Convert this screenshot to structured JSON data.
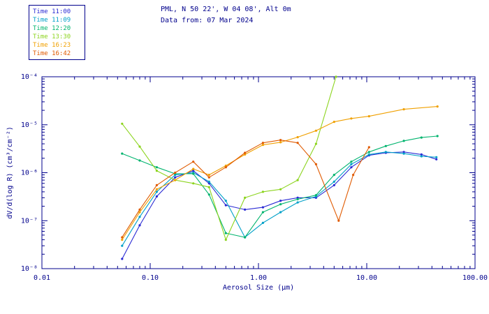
{
  "colors": {
    "axis": "#00008c",
    "background": "#ffffff"
  },
  "legend": {
    "entries": [
      {
        "label": "Time 11:00",
        "color": "#2a2ad4"
      },
      {
        "label": "Time 11:09",
        "color": "#00a0c8"
      },
      {
        "label": "Time 12:20",
        "color": "#00b46e"
      },
      {
        "label": "Time 13:30",
        "color": "#8cd41e"
      },
      {
        "label": "Time 16:23",
        "color": "#f0a000"
      },
      {
        "label": "Time 16:42",
        "color": "#e05a00"
      }
    ]
  },
  "chart_data": {
    "type": "line",
    "title": "PML, N 50 22', W 04 08', Alt 0m",
    "subtitle": "Data from: 07 Mar 2024",
    "xlabel": "Aerosol Size (μm)",
    "ylabel": "dV/d(log R) (cm³/cm⁻²)",
    "axes": {
      "xscale": "log",
      "yscale": "log",
      "xlim": [
        0.01,
        100
      ],
      "ylim": [
        1e-08,
        0.0001
      ],
      "xticks": [
        {
          "value": 0.01,
          "label": "0.01"
        },
        {
          "value": 0.1,
          "label": "0.10"
        },
        {
          "value": 1,
          "label": "1.00"
        },
        {
          "value": 10,
          "label": "10.00"
        },
        {
          "value": 100,
          "label": "100.00"
        }
      ],
      "yticks": [
        {
          "value": 1e-08,
          "label": "10⁻⁸"
        },
        {
          "value": 1e-07,
          "label": "10⁻⁷"
        },
        {
          "value": 1e-06,
          "label": "10⁻⁶"
        },
        {
          "value": 1e-05,
          "label": "10⁻⁵"
        },
        {
          "value": 0.0001,
          "label": "10⁻⁴"
        }
      ],
      "grid": false,
      "legend_position": "top-left"
    },
    "series": [
      {
        "name": "Time 11:00",
        "color": "#2a2ad4",
        "x": [
          0.055,
          0.08,
          0.115,
          0.17,
          0.25,
          0.35,
          0.5,
          0.75,
          1.1,
          1.6,
          2.3,
          3.4,
          5.0,
          7.2,
          10.5,
          15,
          22,
          32,
          44
        ],
        "y": [
          1.6e-08,
          8e-08,
          3.2e-07,
          8e-07,
          1.1e-06,
          6e-07,
          2.1e-07,
          1.7e-07,
          1.9e-07,
          2.6e-07,
          3e-07,
          3e-07,
          5.5e-07,
          1.3e-06,
          2.3e-06,
          2.6e-06,
          2.7e-06,
          2.4e-06,
          1.9e-06
        ]
      },
      {
        "name": "Time 11:09",
        "color": "#00a0c8",
        "x": [
          0.055,
          0.08,
          0.115,
          0.17,
          0.25,
          0.35,
          0.5,
          0.75,
          1.1,
          1.6,
          2.3,
          3.4,
          5.0,
          7.2,
          10.5,
          15,
          22,
          32,
          44
        ],
        "y": [
          3e-08,
          1.2e-07,
          4e-07,
          9e-07,
          1e-06,
          6.5e-07,
          2.6e-07,
          4.5e-08,
          9e-08,
          1.5e-07,
          2.4e-07,
          3.2e-07,
          6.5e-07,
          1.5e-06,
          2.4e-06,
          2.7e-06,
          2.5e-06,
          2.2e-06,
          2.1e-06
        ]
      },
      {
        "name": "Time 12:20",
        "color": "#00b46e",
        "x": [
          0.055,
          0.08,
          0.115,
          0.17,
          0.25,
          0.35,
          0.5,
          0.75,
          1.1,
          1.6,
          2.3,
          3.4,
          5.0,
          7.2,
          10.5,
          15,
          22,
          32,
          45
        ],
        "y": [
          2.5e-06,
          1.8e-06,
          1.3e-06,
          9.5e-07,
          9.5e-07,
          3.5e-07,
          5.5e-08,
          4.5e-08,
          1.5e-07,
          2.2e-07,
          2.8e-07,
          3.4e-07,
          9e-07,
          1.7e-06,
          2.7e-06,
          3.6e-06,
          4.6e-06,
          5.4e-06,
          5.8e-06
        ]
      },
      {
        "name": "Time 13:30",
        "color": "#8cd41e",
        "x": [
          0.055,
          0.08,
          0.115,
          0.17,
          0.25,
          0.35,
          0.5,
          0.75,
          1.1,
          1.6,
          2.3,
          3.4,
          5.2
        ],
        "y": [
          1.05e-05,
          3.5e-06,
          1.1e-06,
          7e-07,
          6e-07,
          5e-07,
          4e-08,
          3e-07,
          4e-07,
          4.5e-07,
          7e-07,
          4e-06,
          0.0001
        ]
      },
      {
        "name": "Time 16:23",
        "color": "#f0a000",
        "x": [
          0.055,
          0.08,
          0.115,
          0.17,
          0.25,
          0.35,
          0.5,
          0.75,
          1.1,
          1.6,
          2.3,
          3.4,
          5.0,
          7.2,
          10.5,
          22,
          45
        ],
        "y": [
          4e-08,
          1.5e-07,
          4.5e-07,
          7e-07,
          1.2e-06,
          9e-07,
          1.4e-06,
          2.4e-06,
          3.8e-06,
          4.3e-06,
          5.5e-06,
          7.5e-06,
          1.15e-05,
          1.35e-05,
          1.5e-05,
          2.1e-05,
          2.4e-05
        ]
      },
      {
        "name": "Time 16:42",
        "color": "#e05a00",
        "x": [
          0.055,
          0.08,
          0.115,
          0.17,
          0.25,
          0.35,
          0.5,
          0.75,
          1.1,
          1.6,
          2.3,
          3.4,
          5.5,
          7.5,
          10.5
        ],
        "y": [
          4.5e-08,
          1.7e-07,
          5.5e-07,
          1e-06,
          1.7e-06,
          8e-07,
          1.3e-06,
          2.6e-06,
          4.2e-06,
          4.8e-06,
          4.2e-06,
          1.5e-06,
          1e-07,
          9e-07,
          3.4e-06
        ]
      }
    ]
  }
}
